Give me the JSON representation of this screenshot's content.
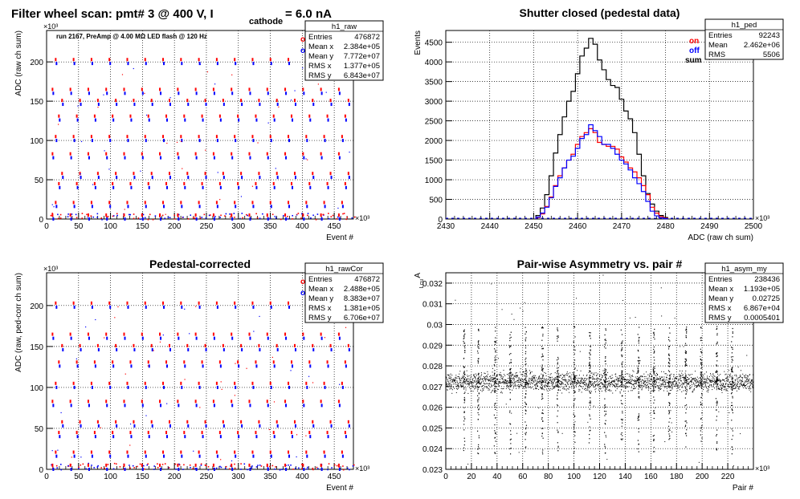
{
  "page": {
    "main_title": "Filter wheel scan: pmt#   3 @   400 V, I",
    "main_title_sub": "cathode",
    "main_title_tail": " = 6.0 nA"
  },
  "chart_data": [
    {
      "id": "raw",
      "type": "scatter",
      "title": "",
      "subtitle": "run 2167, PreAmp @ 4.00 MΩ   LED flash @  120 Hz",
      "xlabel": "Event #",
      "ylabel": "ADC (raw ch sum)",
      "x_multiplier": "×10³",
      "y_multiplier": "×10³",
      "xlim": [
        0,
        480
      ],
      "ylim": [
        0,
        240
      ],
      "xticks": [
        0,
        50,
        100,
        150,
        200,
        250,
        300,
        350,
        400,
        450
      ],
      "yticks": [
        0,
        50,
        100,
        150,
        200
      ],
      "grid": true,
      "level_values": [
        2,
        18,
        42,
        55,
        80,
        102,
        128,
        148,
        162,
        200
      ],
      "band_period": 28,
      "legend": {
        "on": "on",
        "off": "off",
        "on_color": "#ff0000",
        "off_color": "#0000ff"
      },
      "stats": {
        "name": "h1_raw",
        "rows": [
          [
            "Entries",
            "476872"
          ],
          [
            "Mean x",
            "2.384e+05"
          ],
          [
            "Mean y",
            "7.772e+07"
          ],
          [
            "RMS x",
            "1.377e+05"
          ],
          [
            "RMS y",
            "6.843e+07"
          ]
        ]
      }
    },
    {
      "id": "ped",
      "type": "histogram",
      "title": "Shutter closed (pedestal data)",
      "xlabel": "ADC (raw ch sum)",
      "ylabel": "Events",
      "x_multiplier": "×10³",
      "xlim": [
        2430,
        2500
      ],
      "ylim": [
        0,
        4800
      ],
      "xticks": [
        2430,
        2440,
        2450,
        2460,
        2470,
        2480,
        2490,
        2500
      ],
      "yticks": [
        0,
        500,
        1000,
        1500,
        2000,
        2500,
        3000,
        3500,
        4000,
        4500
      ],
      "grid": true,
      "bin_edges_start": 2450.5,
      "bin_width": 1,
      "series": [
        {
          "name": "sum",
          "color": "#000000",
          "values": [
            90,
            280,
            620,
            1100,
            1680,
            2150,
            2600,
            3000,
            3250,
            3700,
            4150,
            4350,
            4600,
            4450,
            4050,
            3800,
            3550,
            3400,
            3350,
            3050,
            2750,
            2550,
            2200,
            1650,
            1100,
            650,
            380,
            200,
            90,
            40
          ]
        },
        {
          "name": "on",
          "color": "#ff0000",
          "values": [
            40,
            130,
            320,
            560,
            850,
            1100,
            1300,
            1500,
            1650,
            1900,
            2100,
            2200,
            2300,
            2200,
            1950,
            1900,
            1850,
            1850,
            1780,
            1580,
            1450,
            1300,
            1200,
            1050,
            850,
            620,
            300,
            150,
            60,
            20
          ]
        },
        {
          "name": "off",
          "color": "#0000ff",
          "values": [
            50,
            150,
            300,
            540,
            830,
            1050,
            1300,
            1500,
            1600,
            1800,
            2050,
            2150,
            2400,
            2250,
            2100,
            1900,
            1900,
            1800,
            1650,
            1500,
            1400,
            1250,
            1050,
            900,
            700,
            450,
            200,
            80,
            30,
            10
          ]
        }
      ],
      "legend": {
        "on": "on",
        "off": "off",
        "sum": "sum"
      },
      "stats": {
        "name": "h1_ped",
        "rows": [
          [
            "Entries",
            "92243"
          ],
          [
            "Mean",
            "2.462e+06"
          ],
          [
            "RMS",
            "5506"
          ]
        ]
      }
    },
    {
      "id": "rawcor",
      "type": "scatter",
      "title": "Pedestal-corrected",
      "xlabel": "Event #",
      "ylabel": "ADC (raw, ped-corr ch sum)",
      "x_multiplier": "×10³",
      "y_multiplier": "×10³",
      "xlim": [
        0,
        480
      ],
      "ylim": [
        0,
        240
      ],
      "xticks": [
        0,
        50,
        100,
        150,
        200,
        250,
        300,
        350,
        400,
        450
      ],
      "yticks": [
        0,
        50,
        100,
        150,
        200
      ],
      "grid": true,
      "level_values": [
        2,
        18,
        42,
        55,
        80,
        102,
        128,
        148,
        162,
        200
      ],
      "band_period": 28,
      "legend": {
        "on": "on",
        "off": "off",
        "on_color": "#ff0000",
        "off_color": "#0000ff"
      },
      "stats": {
        "name": "h1_rawCor",
        "rows": [
          [
            "Entries",
            "476872"
          ],
          [
            "Mean x",
            "2.488e+05"
          ],
          [
            "Mean y",
            "8.383e+07"
          ],
          [
            "RMS x",
            "1.381e+05"
          ],
          [
            "RMS y",
            "6.706e+07"
          ]
        ]
      }
    },
    {
      "id": "asym",
      "type": "scatter",
      "title": "Pair-wise Asymmetry vs. pair #",
      "xlabel": "Pair #",
      "ylabel": "A",
      "ylabel_sub": "Lcu",
      "x_multiplier": "×10³",
      "xlim": [
        0,
        240
      ],
      "ylim": [
        0.023,
        0.0325
      ],
      "xticks": [
        0,
        20,
        40,
        60,
        80,
        100,
        120,
        140,
        160,
        180,
        200,
        220
      ],
      "yticks": [
        0.023,
        0.024,
        0.025,
        0.026,
        0.027,
        0.028,
        0.029,
        0.03,
        0.031,
        0.032
      ],
      "ytick_labels": [
        "0.023",
        "0.024",
        "0.025",
        "0.026",
        "0.027",
        "0.028",
        "0.029",
        "0.03",
        "0.031",
        "0.032"
      ],
      "grid": true,
      "center_value": 0.02725,
      "spike_positions": [
        14,
        25,
        38,
        50,
        62,
        75,
        87,
        100,
        112,
        124,
        137,
        150,
        162,
        174,
        187,
        199,
        211,
        223
      ],
      "stats": {
        "name": "h1_asym_my",
        "rows": [
          [
            "Entries",
            "238436"
          ],
          [
            "Mean x",
            "1.193e+05"
          ],
          [
            "Mean y",
            "0.02725"
          ],
          [
            "RMS x",
            "6.867e+04"
          ],
          [
            "RMS y",
            "0.0005401"
          ]
        ]
      }
    }
  ]
}
